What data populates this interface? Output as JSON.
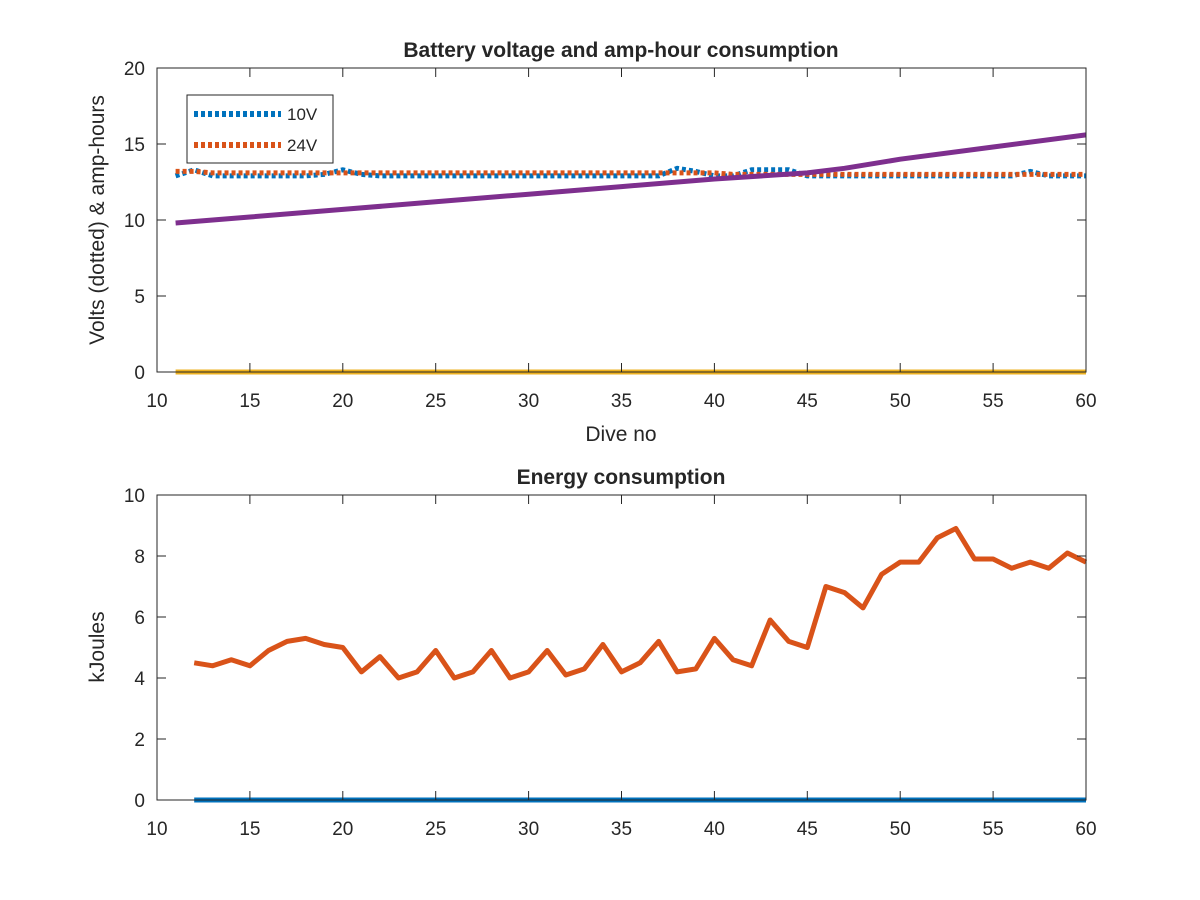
{
  "chart_data": [
    {
      "type": "line",
      "title": "Battery voltage and amp-hour consumption",
      "xlabel": "Dive no",
      "ylabel": "Volts (dotted) & amp-hours",
      "xlim": [
        10,
        60
      ],
      "ylim": [
        0,
        20
      ],
      "xticks": [
        10,
        15,
        20,
        25,
        30,
        35,
        40,
        45,
        50,
        55,
        60
      ],
      "yticks": [
        0,
        5,
        10,
        15,
        20
      ],
      "grid": false,
      "legend_position": "top-left",
      "series": [
        {
          "name": "10V",
          "style": "dotted",
          "color": "#0072BD",
          "x": [
            11,
            12,
            13,
            14,
            15,
            16,
            17,
            18,
            19,
            20,
            21,
            22,
            23,
            24,
            25,
            26,
            27,
            28,
            29,
            30,
            31,
            32,
            33,
            34,
            35,
            36,
            37,
            38,
            39,
            40,
            41,
            42,
            43,
            44,
            45,
            46,
            47,
            48,
            49,
            50,
            51,
            52,
            53,
            54,
            55,
            56,
            57,
            58,
            59,
            60
          ],
          "y": [
            12.9,
            13.3,
            12.9,
            12.9,
            12.9,
            12.9,
            12.9,
            12.9,
            13.0,
            13.3,
            13.0,
            12.9,
            12.9,
            12.9,
            12.9,
            12.9,
            12.9,
            12.9,
            12.9,
            12.9,
            12.9,
            12.9,
            12.9,
            12.9,
            12.9,
            12.9,
            12.9,
            13.4,
            13.2,
            12.9,
            12.9,
            13.3,
            13.3,
            13.3,
            12.9,
            12.9,
            12.9,
            12.9,
            12.9,
            12.9,
            12.9,
            12.9,
            12.9,
            12.9,
            12.9,
            12.9,
            13.2,
            12.9,
            12.9,
            12.9
          ]
        },
        {
          "name": "24V",
          "style": "dotted",
          "color": "#D95319",
          "x": [
            11,
            12,
            13,
            14,
            15,
            16,
            17,
            18,
            19,
            20,
            21,
            22,
            23,
            24,
            25,
            26,
            27,
            28,
            29,
            30,
            31,
            32,
            33,
            34,
            35,
            36,
            37,
            38,
            39,
            40,
            41,
            42,
            43,
            44,
            45,
            46,
            47,
            48,
            49,
            50,
            51,
            52,
            53,
            54,
            55,
            56,
            57,
            58,
            59,
            60
          ],
          "y": [
            13.2,
            13.2,
            13.1,
            13.1,
            13.1,
            13.1,
            13.1,
            13.1,
            13.1,
            13.1,
            13.1,
            13.1,
            13.1,
            13.1,
            13.1,
            13.1,
            13.1,
            13.1,
            13.1,
            13.1,
            13.1,
            13.1,
            13.1,
            13.1,
            13.1,
            13.1,
            13.1,
            13.1,
            13.1,
            13.1,
            13.0,
            13.0,
            13.0,
            13.0,
            13.0,
            13.0,
            13.0,
            13.0,
            13.0,
            13.0,
            13.0,
            13.0,
            13.0,
            13.0,
            13.0,
            13.0,
            13.0,
            13.0,
            13.0,
            13.0
          ]
        },
        {
          "style": "solid",
          "color": "#7E2F8E",
          "x": [
            11,
            15,
            20,
            25,
            30,
            35,
            40,
            45,
            47,
            50,
            55,
            60
          ],
          "y": [
            9.8,
            10.2,
            10.7,
            11.2,
            11.7,
            12.2,
            12.7,
            13.1,
            13.4,
            14.0,
            14.8,
            15.6
          ]
        },
        {
          "style": "solid",
          "color": "#EDB120",
          "x": [
            11,
            60
          ],
          "y": [
            0,
            0
          ]
        }
      ]
    },
    {
      "type": "line",
      "title": "Energy consumption",
      "xlabel": "",
      "ylabel": "kJoules",
      "xlim": [
        10,
        60
      ],
      "ylim": [
        0,
        10
      ],
      "xticks": [
        10,
        15,
        20,
        25,
        30,
        35,
        40,
        45,
        50,
        55,
        60
      ],
      "yticks": [
        0,
        2,
        4,
        6,
        8,
        10
      ],
      "grid": false,
      "series": [
        {
          "style": "solid",
          "color": "#D95319",
          "x": [
            12,
            13,
            14,
            15,
            16,
            17,
            18,
            19,
            20,
            21,
            22,
            23,
            24,
            25,
            26,
            27,
            28,
            29,
            30,
            31,
            32,
            33,
            34,
            35,
            36,
            37,
            38,
            39,
            40,
            41,
            42,
            43,
            44,
            45,
            46,
            47,
            48,
            49,
            50,
            51,
            52,
            53,
            54,
            55,
            56,
            57,
            58,
            59,
            60
          ],
          "y": [
            4.5,
            4.4,
            4.6,
            4.4,
            4.9,
            5.2,
            5.3,
            5.1,
            5.0,
            4.2,
            4.7,
            4.0,
            4.2,
            4.9,
            4.0,
            4.2,
            4.9,
            4.0,
            4.2,
            4.9,
            4.1,
            4.3,
            5.1,
            4.2,
            4.5,
            5.2,
            4.2,
            4.3,
            5.3,
            4.6,
            4.4,
            5.9,
            5.2,
            5.0,
            7.0,
            6.8,
            6.3,
            7.4,
            7.8,
            7.8,
            8.6,
            8.9,
            7.9,
            7.9,
            7.6,
            7.8,
            7.6,
            8.1,
            7.8
          ]
        },
        {
          "style": "solid",
          "color": "#0072BD",
          "x": [
            12,
            60
          ],
          "y": [
            0,
            0
          ]
        }
      ]
    }
  ]
}
